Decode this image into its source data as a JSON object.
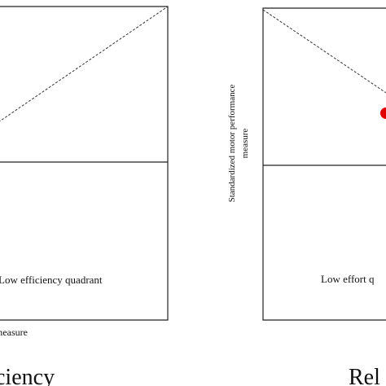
{
  "left_panel": {
    "quadrant_label": "Low efficiency quadrant",
    "x_axis_label": "measure",
    "title": "ciency"
  },
  "right_panel": {
    "y_axis_label_line1": "Standardized motor performance",
    "y_axis_label_line2": "measure",
    "quadrant_label": "Low effort q",
    "title": "Rel",
    "point_color": "#e00000"
  },
  "colors": {
    "frame": "#222222",
    "dashed_line": "#333333"
  }
}
